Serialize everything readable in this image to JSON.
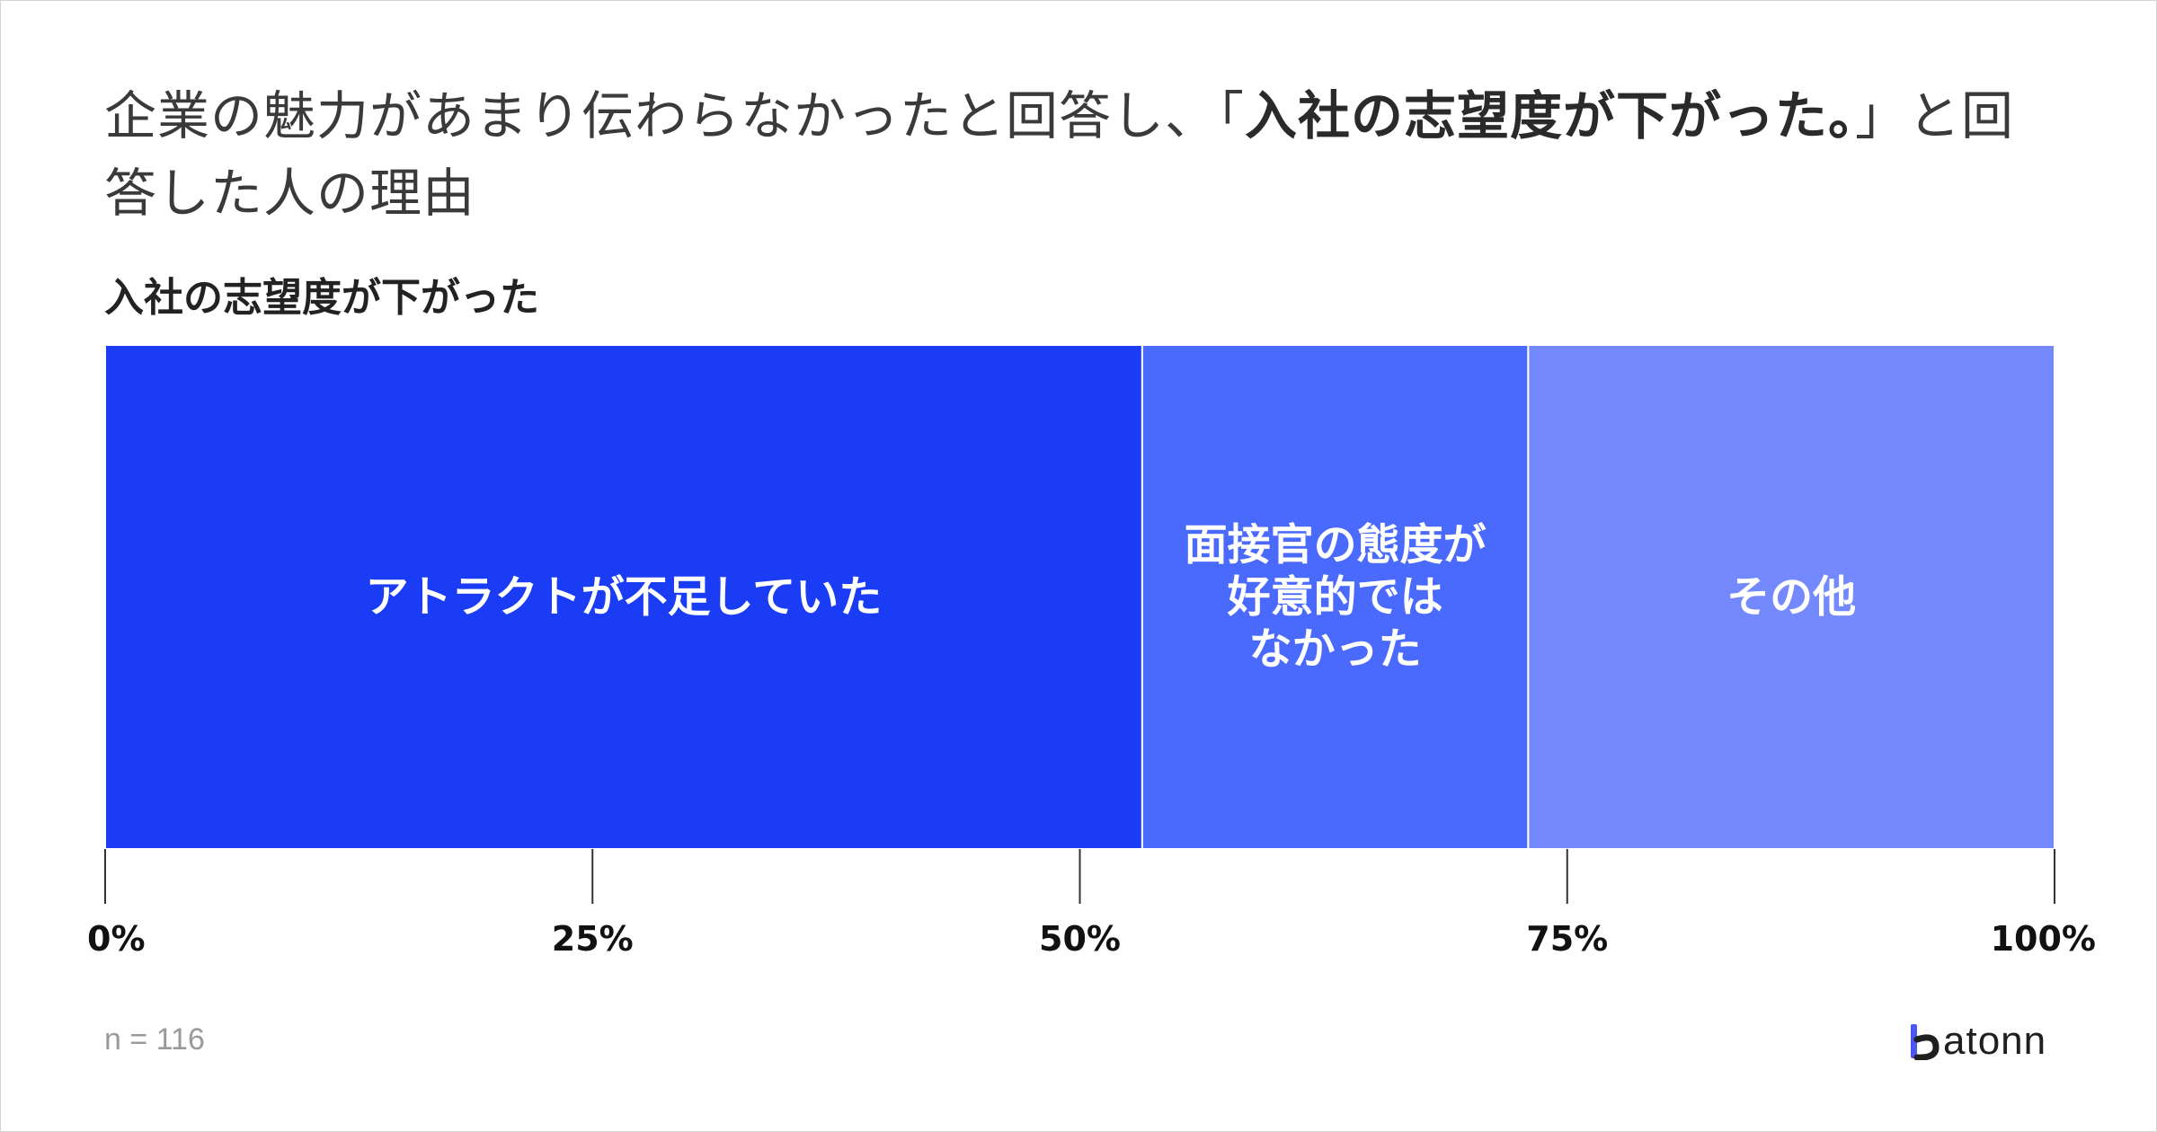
{
  "headline": {
    "part1": "企業の魅力があまり伝わらなかったと回答し、「",
    "emphasis": "入社の志望度が下がった。",
    "part2": "」と回答した人の理由"
  },
  "footer": {
    "sample_size": "n = 116",
    "brand_text": "atonn",
    "brand_name": "batonn",
    "brand_color": "#4a57f2"
  },
  "chart_data": {
    "type": "bar",
    "orientation": "horizontal-stacked-100",
    "title": "入社の志望度が下がった",
    "xlim": [
      0,
      100
    ],
    "x_ticks": [
      0,
      25,
      50,
      75,
      100
    ],
    "x_tick_labels": [
      "0%",
      "25%",
      "50%",
      "75%",
      "100%"
    ],
    "grid": false,
    "legend": "none",
    "series": [
      {
        "name": "アトラクトが不足していた",
        "label_lines": [
          "アトラクトが不足していた"
        ],
        "value": 53.2,
        "color": "#1a3cf5"
      },
      {
        "name": "面接官の態度が好意的ではなかった",
        "label_lines": [
          "面接官の態度が",
          "好意的では",
          "なかった"
        ],
        "value": 19.8,
        "color": "#4a6afe"
      },
      {
        "name": "その他",
        "label_lines": [
          "その他"
        ],
        "value": 27.0,
        "color": "#7589fe"
      }
    ]
  }
}
